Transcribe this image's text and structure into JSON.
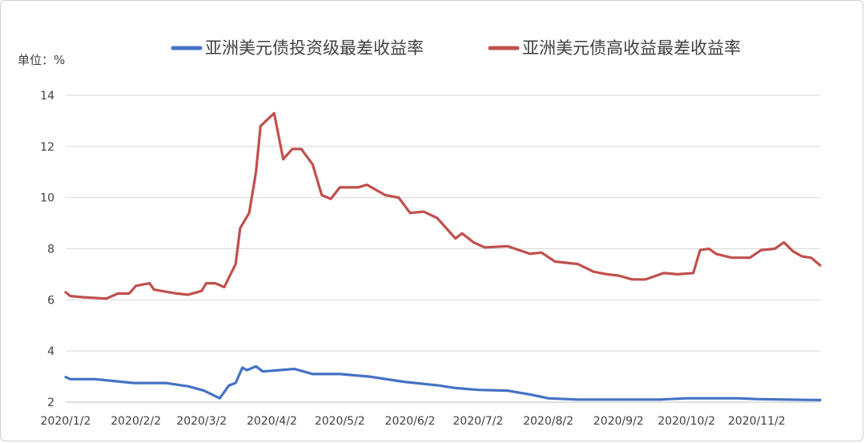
{
  "chart_data": {
    "type": "line",
    "unit_label": "单位：%",
    "x_tick_labels": [
      "2020/1/2",
      "2020/2/2",
      "2020/3/2",
      "2020/4/2",
      "2020/5/2",
      "2020/6/2",
      "2020/7/2",
      "2020/8/2",
      "2020/9/2",
      "2020/10/2",
      "2020/11/2"
    ],
    "x_range": [
      "2020-01-02",
      "2020-11-30"
    ],
    "y_ticks": [
      2,
      4,
      6,
      8,
      10,
      12,
      14
    ],
    "ylim": [
      2,
      14
    ],
    "grid": "horizontal",
    "legend_position": "top",
    "series": [
      {
        "name": "亚洲美元债投资级最差收益率",
        "color": "#4472C4",
        "points": [
          [
            "2020-01-02",
            2.98
          ],
          [
            "2020-01-04",
            2.9
          ],
          [
            "2020-01-15",
            2.9
          ],
          [
            "2020-02-01",
            2.75
          ],
          [
            "2020-02-15",
            2.75
          ],
          [
            "2020-02-25",
            2.62
          ],
          [
            "2020-03-03",
            2.45
          ],
          [
            "2020-03-10",
            2.15
          ],
          [
            "2020-03-14",
            2.65
          ],
          [
            "2020-03-17",
            2.75
          ],
          [
            "2020-03-20",
            3.35
          ],
          [
            "2020-03-22",
            3.25
          ],
          [
            "2020-03-26",
            3.4
          ],
          [
            "2020-03-29",
            3.2
          ],
          [
            "2020-04-05",
            3.25
          ],
          [
            "2020-04-12",
            3.3
          ],
          [
            "2020-04-20",
            3.1
          ],
          [
            "2020-05-02",
            3.1
          ],
          [
            "2020-05-15",
            3.0
          ],
          [
            "2020-05-30",
            2.8
          ],
          [
            "2020-06-15",
            2.65
          ],
          [
            "2020-06-22",
            2.55
          ],
          [
            "2020-07-02",
            2.48
          ],
          [
            "2020-07-15",
            2.45
          ],
          [
            "2020-07-25",
            2.3
          ],
          [
            "2020-08-02",
            2.15
          ],
          [
            "2020-08-15",
            2.1
          ],
          [
            "2020-09-02",
            2.1
          ],
          [
            "2020-09-20",
            2.1
          ],
          [
            "2020-10-02",
            2.15
          ],
          [
            "2020-10-15",
            2.15
          ],
          [
            "2020-10-25",
            2.15
          ],
          [
            "2020-11-02",
            2.12
          ],
          [
            "2020-11-15",
            2.1
          ],
          [
            "2020-11-30",
            2.08
          ]
        ]
      },
      {
        "name": "亚洲美元债高收益最差收益率",
        "color": "#C0504D",
        "points": [
          [
            "2020-01-02",
            6.3
          ],
          [
            "2020-01-04",
            6.15
          ],
          [
            "2020-01-10",
            6.1
          ],
          [
            "2020-01-20",
            6.05
          ],
          [
            "2020-01-25",
            6.25
          ],
          [
            "2020-01-30",
            6.25
          ],
          [
            "2020-02-02",
            6.55
          ],
          [
            "2020-02-08",
            6.65
          ],
          [
            "2020-02-10",
            6.4
          ],
          [
            "2020-02-20",
            6.25
          ],
          [
            "2020-02-25",
            6.2
          ],
          [
            "2020-03-02",
            6.35
          ],
          [
            "2020-03-04",
            6.65
          ],
          [
            "2020-03-08",
            6.65
          ],
          [
            "2020-03-12",
            6.5
          ],
          [
            "2020-03-17",
            7.4
          ],
          [
            "2020-03-19",
            8.8
          ],
          [
            "2020-03-23",
            9.4
          ],
          [
            "2020-03-26",
            11.0
          ],
          [
            "2020-03-28",
            12.8
          ],
          [
            "2020-04-03",
            13.3
          ],
          [
            "2020-04-07",
            11.5
          ],
          [
            "2020-04-11",
            11.9
          ],
          [
            "2020-04-15",
            11.9
          ],
          [
            "2020-04-20",
            11.3
          ],
          [
            "2020-04-24",
            10.1
          ],
          [
            "2020-04-28",
            9.95
          ],
          [
            "2020-05-02",
            10.4
          ],
          [
            "2020-05-10",
            10.4
          ],
          [
            "2020-05-14",
            10.5
          ],
          [
            "2020-05-22",
            10.1
          ],
          [
            "2020-05-28",
            10.0
          ],
          [
            "2020-06-02",
            9.4
          ],
          [
            "2020-06-08",
            9.45
          ],
          [
            "2020-06-14",
            9.2
          ],
          [
            "2020-06-22",
            8.4
          ],
          [
            "2020-06-25",
            8.6
          ],
          [
            "2020-06-30",
            8.25
          ],
          [
            "2020-07-05",
            8.05
          ],
          [
            "2020-07-15",
            8.1
          ],
          [
            "2020-07-25",
            7.8
          ],
          [
            "2020-07-30",
            7.85
          ],
          [
            "2020-08-05",
            7.5
          ],
          [
            "2020-08-15",
            7.4
          ],
          [
            "2020-08-22",
            7.1
          ],
          [
            "2020-08-28",
            7.0
          ],
          [
            "2020-09-02",
            6.95
          ],
          [
            "2020-09-08",
            6.8
          ],
          [
            "2020-09-14",
            6.8
          ],
          [
            "2020-09-22",
            7.05
          ],
          [
            "2020-09-28",
            7.0
          ],
          [
            "2020-10-05",
            7.05
          ],
          [
            "2020-10-08",
            7.95
          ],
          [
            "2020-10-12",
            8.0
          ],
          [
            "2020-10-15",
            7.8
          ],
          [
            "2020-10-22",
            7.65
          ],
          [
            "2020-10-30",
            7.65
          ],
          [
            "2020-11-04",
            7.95
          ],
          [
            "2020-11-10",
            8.0
          ],
          [
            "2020-11-14",
            8.25
          ],
          [
            "2020-11-18",
            7.9
          ],
          [
            "2020-11-22",
            7.7
          ],
          [
            "2020-11-26",
            7.65
          ],
          [
            "2020-11-30",
            7.35
          ]
        ]
      }
    ]
  }
}
